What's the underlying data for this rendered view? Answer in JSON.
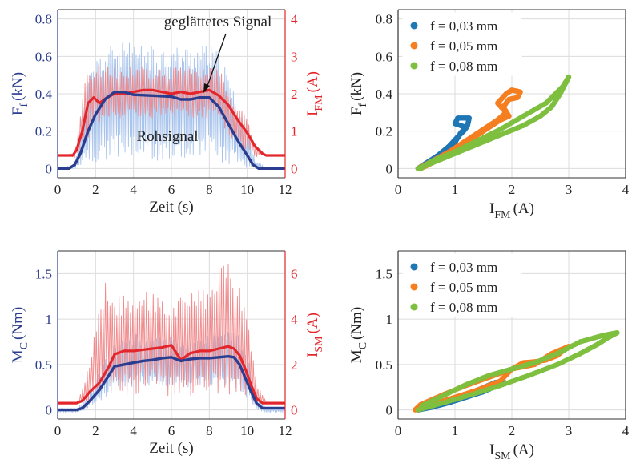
{
  "colors": {
    "blue_axis": "#2b3d8f",
    "red_axis": "#e3262b",
    "blue_raw": "#a9c4ec",
    "red_raw": "#f08a8c",
    "blue_smooth": "#2b3d8f",
    "red_smooth": "#e3262b",
    "grid": "#dcdcdc",
    "s1": "#1f77b4",
    "s2": "#f57f20",
    "s3": "#7fbf3f"
  },
  "chart_data": [
    {
      "id": "top-left",
      "type": "line",
      "xlabel": "Zeit (s)",
      "ylabel_left": {
        "main": "F",
        "sub": "f",
        "unit": "(kN)"
      },
      "ylabel_right": {
        "main": "I",
        "sub": "FM",
        "unit": "(A)"
      },
      "xlim": [
        0,
        12
      ],
      "ylim_left": [
        -0.05,
        0.85
      ],
      "ylim_right": [
        -0.25,
        4.25
      ],
      "xticks": [
        "0",
        "2",
        "4",
        "6",
        "8",
        "10",
        "12"
      ],
      "yticks_left": [
        "0",
        "0.2",
        "0.4",
        "0.6",
        "0.8"
      ],
      "yticks_right": [
        "0",
        "1",
        "2",
        "3",
        "4"
      ],
      "annotations": {
        "smooth": "geglättetes Signal",
        "raw": "Rohsignal"
      },
      "blue_smooth": {
        "x": [
          0,
          0.6,
          0.9,
          1.2,
          1.6,
          2.0,
          2.5,
          3.0,
          3.5,
          4.0,
          5.0,
          6.0,
          6.5,
          7.0,
          7.5,
          8.0,
          8.5,
          9.0,
          9.5,
          10.0,
          10.3,
          10.6,
          11.0,
          12.0
        ],
        "y": [
          0,
          0,
          0.02,
          0.08,
          0.2,
          0.29,
          0.37,
          0.41,
          0.41,
          0.395,
          0.39,
          0.385,
          0.37,
          0.37,
          0.38,
          0.38,
          0.33,
          0.24,
          0.15,
          0.07,
          0.02,
          0,
          0,
          0
        ]
      },
      "red_smooth": {
        "x": [
          0,
          0.8,
          1.0,
          1.3,
          1.6,
          1.9,
          2.2,
          2.6,
          3.0,
          3.5,
          4.0,
          4.5,
          5.0,
          5.5,
          6.0,
          6.5,
          7.0,
          7.5,
          8.0,
          8.5,
          9.0,
          9.5,
          10.0,
          10.4,
          10.8,
          11.0,
          12.0
        ],
        "y": [
          0.35,
          0.35,
          0.5,
          1.0,
          1.75,
          1.9,
          1.75,
          1.9,
          2.0,
          2.0,
          2.05,
          2.1,
          2.1,
          2.05,
          2.0,
          2.05,
          2.0,
          2.05,
          2.1,
          1.95,
          1.7,
          1.3,
          0.95,
          0.6,
          0.4,
          0.35,
          0.35
        ]
      },
      "blue_raw_envelope": {
        "x": [
          0,
          0.9,
          1.5,
          2.0,
          3.0,
          4.0,
          5.0,
          6.0,
          7.0,
          8.0,
          8.6,
          9.0,
          9.5,
          10.0,
          10.4,
          11.0,
          12.0
        ],
        "upper": [
          0,
          0.02,
          0.45,
          0.6,
          0.68,
          0.67,
          0.66,
          0.66,
          0.66,
          0.67,
          0.62,
          0.5,
          0.35,
          0.2,
          0.05,
          0,
          0
        ],
        "lower": [
          0,
          0,
          0.0,
          0.02,
          0.04,
          0.04,
          0.04,
          0.04,
          0.04,
          0.04,
          0.03,
          0.02,
          0.01,
          0,
          0,
          0,
          0
        ]
      },
      "red_raw_envelope": {
        "x": [
          0,
          0.9,
          1.5,
          2.0,
          3.0,
          4.0,
          5.0,
          6.0,
          7.0,
          8.0,
          8.6,
          9.0,
          9.5,
          10.0,
          10.4,
          11.0,
          12.0
        ],
        "upper": [
          0.35,
          0.4,
          2.6,
          2.8,
          2.7,
          2.75,
          2.7,
          2.7,
          2.7,
          2.8,
          2.6,
          2.1,
          1.7,
          1.4,
          0.7,
          0.35,
          0.35
        ],
        "lower": [
          0.35,
          0.3,
          0.7,
          1.2,
          1.3,
          1.35,
          1.3,
          1.3,
          1.3,
          1.35,
          1.2,
          0.9,
          0.6,
          0.4,
          0.3,
          0.35,
          0.35
        ]
      }
    },
    {
      "id": "top-right",
      "type": "scatter",
      "xlabel": {
        "main": "I",
        "sub": "FM",
        "unit": "(A)"
      },
      "ylabel": {
        "main": "F",
        "sub": "f",
        "unit": "(kN)"
      },
      "xlim": [
        0,
        4
      ],
      "ylim": [
        -0.05,
        0.85
      ],
      "xticks": [
        "0",
        "1",
        "2",
        "3",
        "4"
      ],
      "yticks": [
        "0",
        "0.2",
        "0.4",
        "0.6",
        "0.8"
      ],
      "series": [
        {
          "name": "f = 0,03 mm",
          "color_key": "s1",
          "x": [
            0.35,
            0.5,
            0.7,
            0.9,
            1.05,
            1.15,
            1.2,
            1.0,
            1.05,
            1.25,
            1.22,
            1.1,
            1.0,
            0.8,
            0.6,
            0.4
          ],
          "y": [
            0.0,
            0.03,
            0.07,
            0.12,
            0.17,
            0.2,
            0.22,
            0.24,
            0.27,
            0.27,
            0.23,
            0.19,
            0.14,
            0.09,
            0.04,
            0.0
          ]
        },
        {
          "name": "f = 0,05 mm",
          "color_key": "s2",
          "x": [
            0.35,
            0.6,
            0.9,
            1.2,
            1.5,
            1.75,
            1.9,
            1.75,
            1.9,
            2.0,
            2.15,
            2.1,
            1.95,
            1.85,
            1.95,
            1.8,
            1.5,
            1.2,
            0.9,
            0.6,
            0.4
          ],
          "y": [
            0.0,
            0.04,
            0.09,
            0.15,
            0.21,
            0.26,
            0.3,
            0.35,
            0.4,
            0.42,
            0.41,
            0.38,
            0.37,
            0.33,
            0.28,
            0.26,
            0.2,
            0.14,
            0.08,
            0.03,
            0.0
          ]
        },
        {
          "name": "f = 0,08 mm",
          "color_key": "s3",
          "x": [
            0.35,
            0.6,
            1.0,
            1.4,
            1.8,
            2.2,
            2.5,
            2.7,
            2.85,
            2.95,
            3.0,
            2.9,
            2.6,
            2.2,
            1.8,
            1.4,
            1.0,
            0.6,
            0.4
          ],
          "y": [
            0.0,
            0.03,
            0.08,
            0.13,
            0.18,
            0.23,
            0.28,
            0.33,
            0.4,
            0.46,
            0.49,
            0.44,
            0.35,
            0.28,
            0.21,
            0.15,
            0.09,
            0.04,
            0.0
          ]
        }
      ]
    },
    {
      "id": "bottom-left",
      "type": "line",
      "xlabel": "Zeit (s)",
      "ylabel_left": {
        "main": "M",
        "sub": "C",
        "unit": "(Nm)"
      },
      "ylabel_right": {
        "main": "I",
        "sub": "SM",
        "unit": "(A)"
      },
      "xlim": [
        0,
        12
      ],
      "ylim_left": [
        -0.1,
        1.75
      ],
      "ylim_right": [
        -0.4,
        7.0
      ],
      "xticks": [
        "0",
        "2",
        "4",
        "6",
        "8",
        "10",
        "12"
      ],
      "yticks_left": [
        "0",
        "0.5",
        "1",
        "1.5"
      ],
      "yticks_right": [
        "0",
        "2",
        "4",
        "6"
      ],
      "blue_smooth": {
        "x": [
          0,
          1.0,
          1.3,
          1.7,
          2.2,
          2.7,
          3.0,
          3.5,
          4.0,
          4.5,
          5.0,
          5.5,
          6.0,
          6.5,
          7.0,
          7.5,
          8.0,
          8.5,
          9.0,
          9.3,
          9.6,
          9.9,
          10.2,
          10.5,
          10.8,
          12.0
        ],
        "y": [
          0,
          0,
          0.02,
          0.1,
          0.22,
          0.38,
          0.48,
          0.5,
          0.52,
          0.54,
          0.55,
          0.57,
          0.58,
          0.54,
          0.56,
          0.57,
          0.57,
          0.58,
          0.59,
          0.58,
          0.5,
          0.35,
          0.2,
          0.07,
          0.02,
          0.02
        ]
      },
      "red_smooth": {
        "x": [
          0,
          1.0,
          1.3,
          1.7,
          2.2,
          2.7,
          3.0,
          3.5,
          4.0,
          4.5,
          5.0,
          5.5,
          6.0,
          6.5,
          7.0,
          7.5,
          8.0,
          8.5,
          9.0,
          9.3,
          9.6,
          9.9,
          10.2,
          10.5,
          10.8,
          12.0
        ],
        "y": [
          0.3,
          0.3,
          0.4,
          0.8,
          1.2,
          1.9,
          2.45,
          2.6,
          2.6,
          2.65,
          2.7,
          2.75,
          2.85,
          2.2,
          2.5,
          2.6,
          2.6,
          2.7,
          2.8,
          2.7,
          2.4,
          1.8,
          1.1,
          0.5,
          0.3,
          0.3
        ]
      },
      "blue_raw_envelope": {
        "x": [
          0,
          1.0,
          1.5,
          2.5,
          3.0,
          4.0,
          5.0,
          6.0,
          7.0,
          8.0,
          9.0,
          9.5,
          10.0,
          10.5,
          11.0,
          12.0
        ],
        "upper": [
          0.02,
          0.02,
          0.12,
          0.55,
          0.75,
          0.85,
          0.8,
          0.85,
          0.75,
          0.85,
          0.9,
          0.85,
          0.6,
          0.15,
          0.03,
          0.02
        ],
        "lower": [
          -0.03,
          -0.03,
          0.0,
          0.12,
          0.25,
          0.25,
          0.25,
          0.25,
          0.25,
          0.25,
          0.25,
          0.2,
          0.1,
          0.0,
          -0.03,
          -0.03
        ]
      },
      "red_raw_envelope": {
        "x": [
          0,
          1.0,
          1.5,
          2.5,
          3.0,
          4.0,
          5.0,
          6.0,
          7.0,
          8.0,
          9.0,
          9.5,
          10.0,
          10.5,
          11.0,
          12.0
        ],
        "upper": [
          0.3,
          0.3,
          1.5,
          5.7,
          5.2,
          5.0,
          5.5,
          4.8,
          5.2,
          5.5,
          6.8,
          5.8,
          4.2,
          1.2,
          0.35,
          0.3
        ],
        "lower": [
          0.3,
          0.3,
          0.3,
          0.5,
          0.6,
          0.6,
          0.7,
          0.6,
          0.6,
          0.7,
          0.6,
          0.5,
          0.3,
          0.25,
          0.3,
          0.3
        ]
      }
    },
    {
      "id": "bottom-right",
      "type": "scatter",
      "xlabel": {
        "main": "I",
        "sub": "SM",
        "unit": "(A)"
      },
      "ylabel": {
        "main": "M",
        "sub": "C",
        "unit": "(Nm)"
      },
      "xlim": [
        0,
        4
      ],
      "ylim": [
        -0.1,
        1.75
      ],
      "xticks": [
        "0",
        "1",
        "2",
        "3",
        "4"
      ],
      "yticks": [
        "0",
        "0.5",
        "1",
        "1.5"
      ],
      "series": [
        {
          "name": "f = 0,03 mm",
          "color_key": "s1",
          "x": [
            0.35,
            0.6,
            0.9,
            1.2,
            1.5,
            1.75,
            1.85,
            1.7,
            1.4,
            1.1,
            0.8,
            0.5,
            0.35
          ],
          "y": [
            0.0,
            0.03,
            0.08,
            0.14,
            0.2,
            0.27,
            0.32,
            0.3,
            0.22,
            0.15,
            0.08,
            0.02,
            0.0
          ]
        },
        {
          "name": "f = 0,05 mm",
          "color_key": "s2",
          "x": [
            0.3,
            0.6,
            1.0,
            1.4,
            1.8,
            2.0,
            2.2,
            2.4,
            2.6,
            2.8,
            3.0,
            2.7,
            2.4,
            2.0,
            1.6,
            1.2,
            0.8,
            0.4,
            0.3
          ],
          "y": [
            0.0,
            0.06,
            0.14,
            0.22,
            0.32,
            0.45,
            0.52,
            0.53,
            0.55,
            0.6,
            0.7,
            0.62,
            0.5,
            0.45,
            0.36,
            0.27,
            0.17,
            0.06,
            0.0
          ]
        },
        {
          "name": "f = 0,08 mm",
          "color_key": "s3",
          "x": [
            0.35,
            0.8,
            1.3,
            1.8,
            2.3,
            2.8,
            3.2,
            3.5,
            3.7,
            3.85,
            3.6,
            3.2,
            2.8,
            2.4,
            2.0,
            1.6,
            1.2,
            0.8,
            0.4
          ],
          "y": [
            0.0,
            0.08,
            0.17,
            0.27,
            0.38,
            0.5,
            0.62,
            0.72,
            0.8,
            0.85,
            0.82,
            0.75,
            0.62,
            0.52,
            0.45,
            0.38,
            0.28,
            0.16,
            0.04
          ]
        }
      ]
    }
  ]
}
